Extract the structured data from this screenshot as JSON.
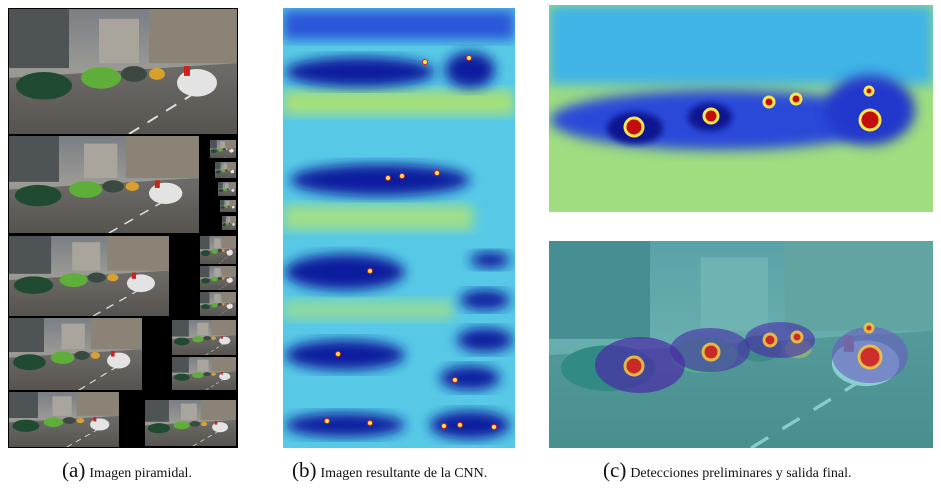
{
  "subfigures": [
    {
      "label": "(a)",
      "caption": "Imagen piramidal."
    },
    {
      "label": "(b)",
      "caption": "Imagen resultante de la CNN."
    },
    {
      "label": "(c)",
      "caption": "Detecciones preliminares y salida final."
    }
  ]
}
